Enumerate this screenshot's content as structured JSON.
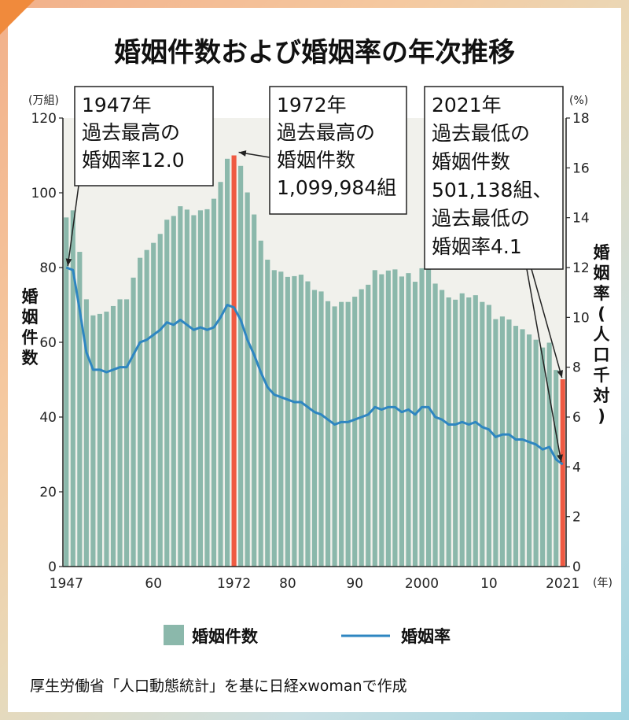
{
  "title": "婚姻件数および婚姻率の年次推移",
  "source": "厚生労働省「人口動態統計」を基に日経xwomanで作成",
  "colors": {
    "bar": "#8bb8ab",
    "highlight": "#ef5a42",
    "line": "#2e86c1",
    "plot_bg": "#f1f1ec"
  },
  "axis": {
    "left_unit": "(万組)",
    "right_unit": "(%)",
    "left_label": "婚姻件数",
    "right_label": "婚姻率(人口千対)",
    "year_unit": "(年)",
    "x_ticks": [
      "1947",
      "60",
      "1972",
      "80",
      "90",
      "2000",
      "10",
      "2021"
    ],
    "left_ticks": [
      "0",
      "20",
      "40",
      "60",
      "80",
      "100",
      "120"
    ],
    "right_ticks": [
      "0",
      "2",
      "4",
      "6",
      "8",
      "10",
      "12",
      "14",
      "16",
      "18"
    ]
  },
  "annotations": [
    {
      "lines": [
        "1947年",
        "過去最高の",
        "婚姻率12.0"
      ]
    },
    {
      "lines": [
        "1972年",
        "過去最高の",
        "婚姻件数",
        "1,099,984組"
      ]
    },
    {
      "lines": [
        "2021年",
        "過去最低の",
        "婚姻件数",
        "501,138組、",
        "過去最低の",
        "婚姻率4.1"
      ]
    }
  ],
  "legend": {
    "bar": "婚姻件数",
    "line": "婚姻率"
  },
  "chart_data": {
    "type": "bar",
    "title": "婚姻件数および婚姻率の年次推移",
    "x": [
      1947,
      1948,
      1949,
      1950,
      1951,
      1952,
      1953,
      1954,
      1955,
      1956,
      1957,
      1958,
      1959,
      1960,
      1961,
      1962,
      1963,
      1964,
      1965,
      1966,
      1967,
      1968,
      1969,
      1970,
      1971,
      1972,
      1973,
      1974,
      1975,
      1976,
      1977,
      1978,
      1979,
      1980,
      1981,
      1982,
      1983,
      1984,
      1985,
      1986,
      1987,
      1988,
      1989,
      1990,
      1991,
      1992,
      1993,
      1994,
      1995,
      1996,
      1997,
      1998,
      1999,
      2000,
      2001,
      2002,
      2003,
      2004,
      2005,
      2006,
      2007,
      2008,
      2009,
      2010,
      2011,
      2012,
      2013,
      2014,
      2015,
      2016,
      2017,
      2018,
      2019,
      2020,
      2021
    ],
    "highlight_x": [
      1972,
      2021
    ],
    "series": [
      {
        "name": "婚姻件数",
        "type": "bar",
        "axis": "left",
        "unit": "万組",
        "values": [
          93.4,
          95.3,
          84.2,
          71.5,
          67.2,
          67.6,
          68.2,
          69.7,
          71.5,
          71.5,
          77.3,
          82.6,
          84.7,
          86.6,
          89.0,
          92.8,
          93.8,
          96.4,
          95.5,
          94.0,
          95.3,
          95.6,
          98.4,
          102.9,
          109.1,
          110.0,
          107.2,
          100.1,
          94.2,
          87.2,
          82.1,
          79.3,
          78.9,
          77.5,
          77.7,
          78.1,
          76.3,
          74.0,
          73.6,
          71.0,
          69.6,
          70.8,
          70.8,
          72.2,
          74.2,
          75.4,
          79.3,
          78.2,
          79.2,
          79.5,
          77.6,
          78.5,
          76.2,
          79.8,
          80.0,
          75.7,
          74.0,
          72.0,
          71.4,
          73.1,
          72.0,
          72.6,
          70.8,
          70.0,
          66.2,
          66.9,
          66.1,
          64.4,
          63.5,
          62.1,
          60.7,
          58.6,
          59.9,
          52.6,
          50.1
        ]
      },
      {
        "name": "婚姻率",
        "type": "line",
        "axis": "right",
        "unit": "%",
        "values": [
          12.0,
          11.9,
          10.3,
          8.6,
          7.9,
          7.9,
          7.8,
          7.9,
          8.0,
          8.0,
          8.5,
          9.0,
          9.1,
          9.3,
          9.5,
          9.8,
          9.7,
          9.9,
          9.7,
          9.5,
          9.6,
          9.5,
          9.6,
          10.0,
          10.5,
          10.4,
          9.9,
          9.1,
          8.5,
          7.8,
          7.2,
          6.9,
          6.8,
          6.7,
          6.6,
          6.6,
          6.4,
          6.2,
          6.1,
          5.9,
          5.7,
          5.8,
          5.8,
          5.9,
          6.0,
          6.1,
          6.4,
          6.3,
          6.4,
          6.4,
          6.2,
          6.3,
          6.1,
          6.4,
          6.4,
          6.0,
          5.9,
          5.7,
          5.7,
          5.8,
          5.7,
          5.8,
          5.6,
          5.5,
          5.2,
          5.3,
          5.3,
          5.1,
          5.1,
          5.0,
          4.9,
          4.7,
          4.8,
          4.3,
          4.1
        ]
      }
    ],
    "ylim": [
      0,
      120
    ],
    "y2lim": [
      0,
      18
    ],
    "grid": false,
    "legend": "bottom"
  }
}
